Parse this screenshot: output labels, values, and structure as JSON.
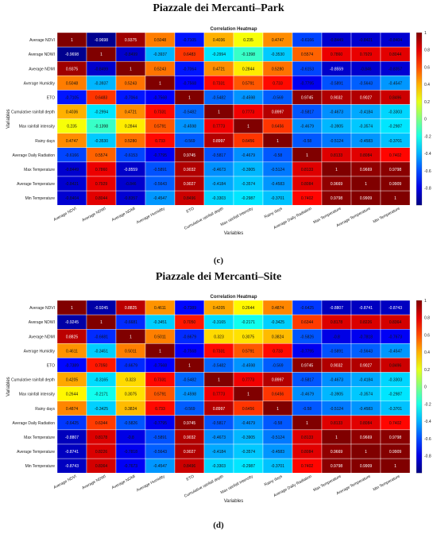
{
  "chart_data": [
    {
      "type": "heatmap",
      "figure_title": "Piazzale dei Mercanti–Park",
      "title": "Correlation Heatmap",
      "xlabel": "Variables",
      "ylabel": "Variables",
      "panel_label": "(c)",
      "categories": [
        "Average NDVI",
        "Average NDWI",
        "Average NDMI",
        "Average Humidity",
        "ETO",
        "Cumulative rainfall depth",
        "Max rainfall intensity",
        "Rainy days",
        "Average Daily Radiation",
        "Max Temperature",
        "Average Temperature",
        "Min Temperature"
      ],
      "colorbar_ticks": [
        "1",
        "0.8",
        "0.6",
        "0.4",
        "0.2",
        "0",
        "-0.2",
        "-0.4",
        "-0.6",
        "-0.8"
      ],
      "matrix": [
        [
          "1",
          "-0.9698",
          "0.9375",
          "0.5048",
          "-0.7105",
          "0.4036",
          "0.235",
          "0.4747",
          "-0.6166",
          "-0.8449",
          "-0.8421",
          "-0.8404"
        ],
        [
          "-0.9698",
          "1",
          "-0.8499",
          "-0.3937",
          "0.6483",
          "-0.2994",
          "-0.1398",
          "-0.3530",
          "0.5574",
          "0.7860",
          "0.7929",
          "0.8044"
        ],
        [
          "0.9375",
          "-0.8499",
          "1",
          "0.5243",
          "-0.7064",
          "0.4721",
          "0.2844",
          "0.5280",
          "-0.6153",
          "-0.8559",
          "-0.846",
          "-0.8357"
        ],
        [
          "0.5048",
          "-0.3937",
          "0.5243",
          "1",
          "-0.7568",
          "0.7331",
          "0.5791",
          "0.733",
          "-0.7795",
          "-0.5891",
          "-0.5643",
          "-0.4547"
        ],
        [
          "-0.7105",
          "0.6483",
          "-0.7064",
          "-0.7568",
          "1",
          "-0.5482",
          "-0.4598",
          "-0.569",
          "0.9745",
          "0.9032",
          "0.9027",
          "0.8496"
        ],
        [
          "0.4036",
          "-0.2994",
          "0.4721",
          "0.7331",
          "-0.5482",
          "1",
          "0.7773",
          "0.8997",
          "-0.5817",
          "-0.4673",
          "-0.4184",
          "-0.3303"
        ],
        [
          "0.235",
          "-0.1398",
          "0.2844",
          "0.5791",
          "-0.4598",
          "0.7773",
          "1",
          "0.6456",
          "-0.4679",
          "-0.3905",
          "-0.3574",
          "-0.2987"
        ],
        [
          "0.4747",
          "-0.3530",
          "0.5280",
          "0.733",
          "-0.569",
          "0.8997",
          "0.6456",
          "1",
          "-0.58",
          "-0.5124",
          "-0.4583",
          "-0.3701"
        ],
        [
          "-0.6166",
          "0.5574",
          "-0.6153",
          "-0.7795",
          "0.9745",
          "-0.5817",
          "-0.4679",
          "-0.58",
          "1",
          "0.8133",
          "0.8084",
          "0.7402"
        ],
        [
          "-0.8449",
          "0.7860",
          "-0.8559",
          "-0.5891",
          "0.9032",
          "-0.4673",
          "-0.3905",
          "-0.5124",
          "0.8133",
          "1",
          "0.9669",
          "0.9798"
        ],
        [
          "-0.8421",
          "0.7929",
          "-0.846",
          "-0.5643",
          "0.9027",
          "-0.4184",
          "-0.3574",
          "-0.4583",
          "0.8084",
          "0.9669",
          "1",
          "0.9909"
        ],
        [
          "-0.8404",
          "0.8044",
          "-0.8357",
          "-0.4547",
          "0.8496",
          "-0.3303",
          "-0.2987",
          "-0.3701",
          "0.7402",
          "0.9798",
          "0.9909",
          "1"
        ]
      ]
    },
    {
      "type": "heatmap",
      "figure_title": "Piazzale dei Mercanti–Site",
      "title": "Correlation Heatmap",
      "xlabel": "Variables",
      "ylabel": "Variables",
      "panel_label": "(d)",
      "categories": [
        "Average NDVI",
        "Average NDWI",
        "Average NDMI",
        "Average Humidity",
        "ETO",
        "Cumulative rainfall depth",
        "Max rainfall intensity",
        "Rainy days",
        "Average Daily Radiation",
        "Max Temperature",
        "Average Temperature",
        "Min Temperature"
      ],
      "colorbar_ticks": [
        "1",
        "0.8",
        "0.6",
        "0.4",
        "0.2",
        "0",
        "-0.2",
        "-0.4",
        "-0.6",
        "-0.8"
      ],
      "matrix": [
        [
          "1",
          "-0.9245",
          "0.8825",
          "0.4611",
          "-0.7389",
          "0.4205",
          "0.2644",
          "0.4874",
          "-0.6425",
          "-0.8807",
          "-0.8741",
          "-0.8743"
        ],
        [
          "-0.9245",
          "1",
          "-0.6681",
          "-0.3451",
          "0.7050",
          "-0.3165",
          "-0.2171",
          "-0.3425",
          "0.6344",
          "0.8178",
          "0.8226",
          "0.8364"
        ],
        [
          "0.8825",
          "-0.6681",
          "1",
          "0.5011",
          "-0.6679",
          "0.323",
          "0.3075",
          "0.3824",
          "-0.5826",
          "-0.8",
          "-0.7818",
          "-0.7673"
        ],
        [
          "0.4611",
          "-0.3451",
          "0.5011",
          "1",
          "-0.7568",
          "0.7331",
          "0.5791",
          "0.733",
          "-0.7795",
          "-0.5891",
          "-0.5643",
          "-0.4547"
        ],
        [
          "-0.7389",
          "0.7050",
          "-0.6679",
          "-0.7568",
          "1",
          "-0.5482",
          "-0.4598",
          "-0.569",
          "0.9745",
          "0.9032",
          "0.9027",
          "0.8496"
        ],
        [
          "0.4205",
          "-0.3165",
          "0.323",
          "0.7331",
          "-0.5482",
          "1",
          "0.7773",
          "0.8997",
          "-0.5817",
          "-0.4673",
          "-0.4184",
          "-0.3303"
        ],
        [
          "0.2644",
          "-0.2171",
          "0.3075",
          "0.5791",
          "-0.4598",
          "0.7773",
          "1",
          "0.6456",
          "-0.4679",
          "-0.3905",
          "-0.3574",
          "-0.2987"
        ],
        [
          "0.4874",
          "-0.3425",
          "0.3824",
          "0.733",
          "-0.569",
          "0.8997",
          "0.6456",
          "1",
          "-0.58",
          "-0.5124",
          "-0.4583",
          "-0.3701"
        ],
        [
          "-0.6425",
          "0.6344",
          "-0.5826",
          "-0.7795",
          "0.9745",
          "-0.5817",
          "-0.4679",
          "-0.58",
          "1",
          "0.8133",
          "0.8084",
          "0.7402"
        ],
        [
          "-0.8807",
          "0.8178",
          "-0.8",
          "-0.5891",
          "0.9032",
          "-0.4673",
          "-0.3905",
          "-0.5124",
          "0.8133",
          "1",
          "0.9669",
          "0.9798"
        ],
        [
          "-0.8741",
          "0.8226",
          "-0.7818",
          "-0.5643",
          "0.9027",
          "-0.4184",
          "-0.3574",
          "-0.4583",
          "0.8084",
          "0.9669",
          "1",
          "0.9909"
        ],
        [
          "-0.8743",
          "0.8364",
          "-0.7673",
          "-0.4547",
          "0.8496",
          "-0.3303",
          "-0.2987",
          "-0.3701",
          "0.7402",
          "0.9798",
          "0.9909",
          "1"
        ]
      ]
    }
  ]
}
